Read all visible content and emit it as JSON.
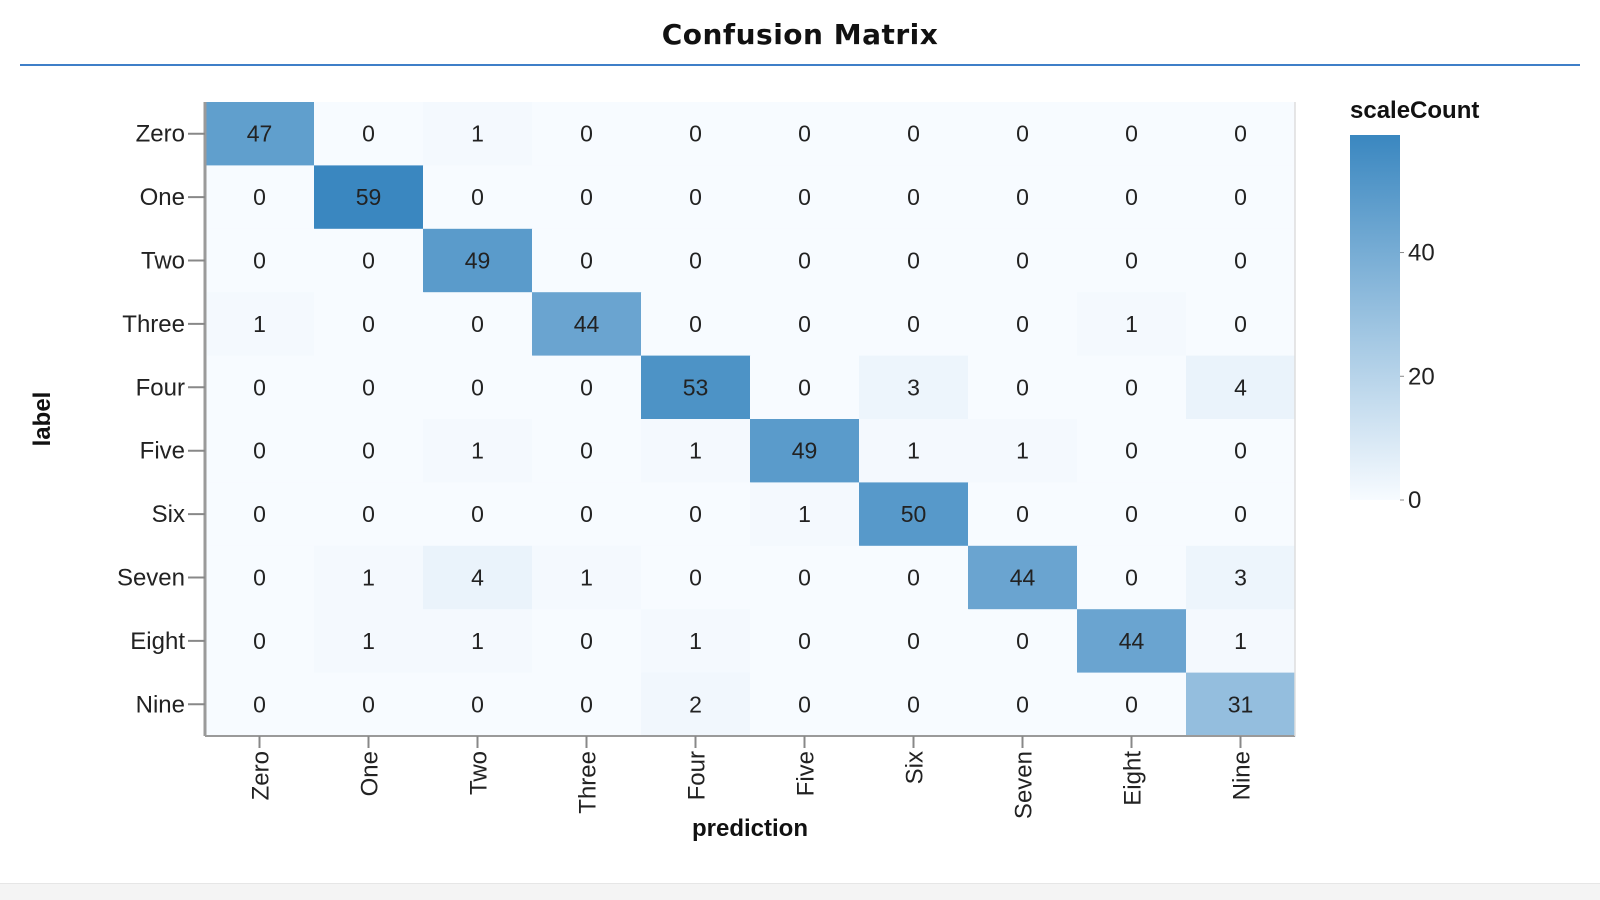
{
  "page": {
    "title": "Confusion Matrix"
  },
  "chart_data": {
    "type": "heatmap",
    "title": "Confusion Matrix",
    "xlabel": "prediction",
    "ylabel": "label",
    "x_categories": [
      "Zero",
      "One",
      "Two",
      "Three",
      "Four",
      "Five",
      "Six",
      "Seven",
      "Eight",
      "Nine"
    ],
    "y_categories": [
      "Zero",
      "One",
      "Two",
      "Three",
      "Four",
      "Five",
      "Six",
      "Seven",
      "Eight",
      "Nine"
    ],
    "values": [
      [
        47,
        0,
        1,
        0,
        0,
        0,
        0,
        0,
        0,
        0
      ],
      [
        0,
        59,
        0,
        0,
        0,
        0,
        0,
        0,
        0,
        0
      ],
      [
        0,
        0,
        49,
        0,
        0,
        0,
        0,
        0,
        0,
        0
      ],
      [
        1,
        0,
        0,
        44,
        0,
        0,
        0,
        0,
        1,
        0
      ],
      [
        0,
        0,
        0,
        0,
        53,
        0,
        3,
        0,
        0,
        4
      ],
      [
        0,
        0,
        1,
        0,
        1,
        49,
        1,
        1,
        0,
        0
      ],
      [
        0,
        0,
        0,
        0,
        0,
        1,
        50,
        0,
        0,
        0
      ],
      [
        0,
        1,
        4,
        1,
        0,
        0,
        0,
        44,
        0,
        3
      ],
      [
        0,
        1,
        1,
        0,
        1,
        0,
        0,
        0,
        44,
        1
      ],
      [
        0,
        0,
        0,
        0,
        2,
        0,
        0,
        0,
        0,
        31
      ]
    ],
    "legend": {
      "title": "scaleCount",
      "ticks": [
        0,
        20,
        40
      ],
      "domain": [
        0,
        59
      ],
      "position": "right"
    },
    "colors": {
      "low": "#f7fbff",
      "high": "#3a87c0",
      "title_rule": "#3f7fc8"
    },
    "grid": false
  }
}
